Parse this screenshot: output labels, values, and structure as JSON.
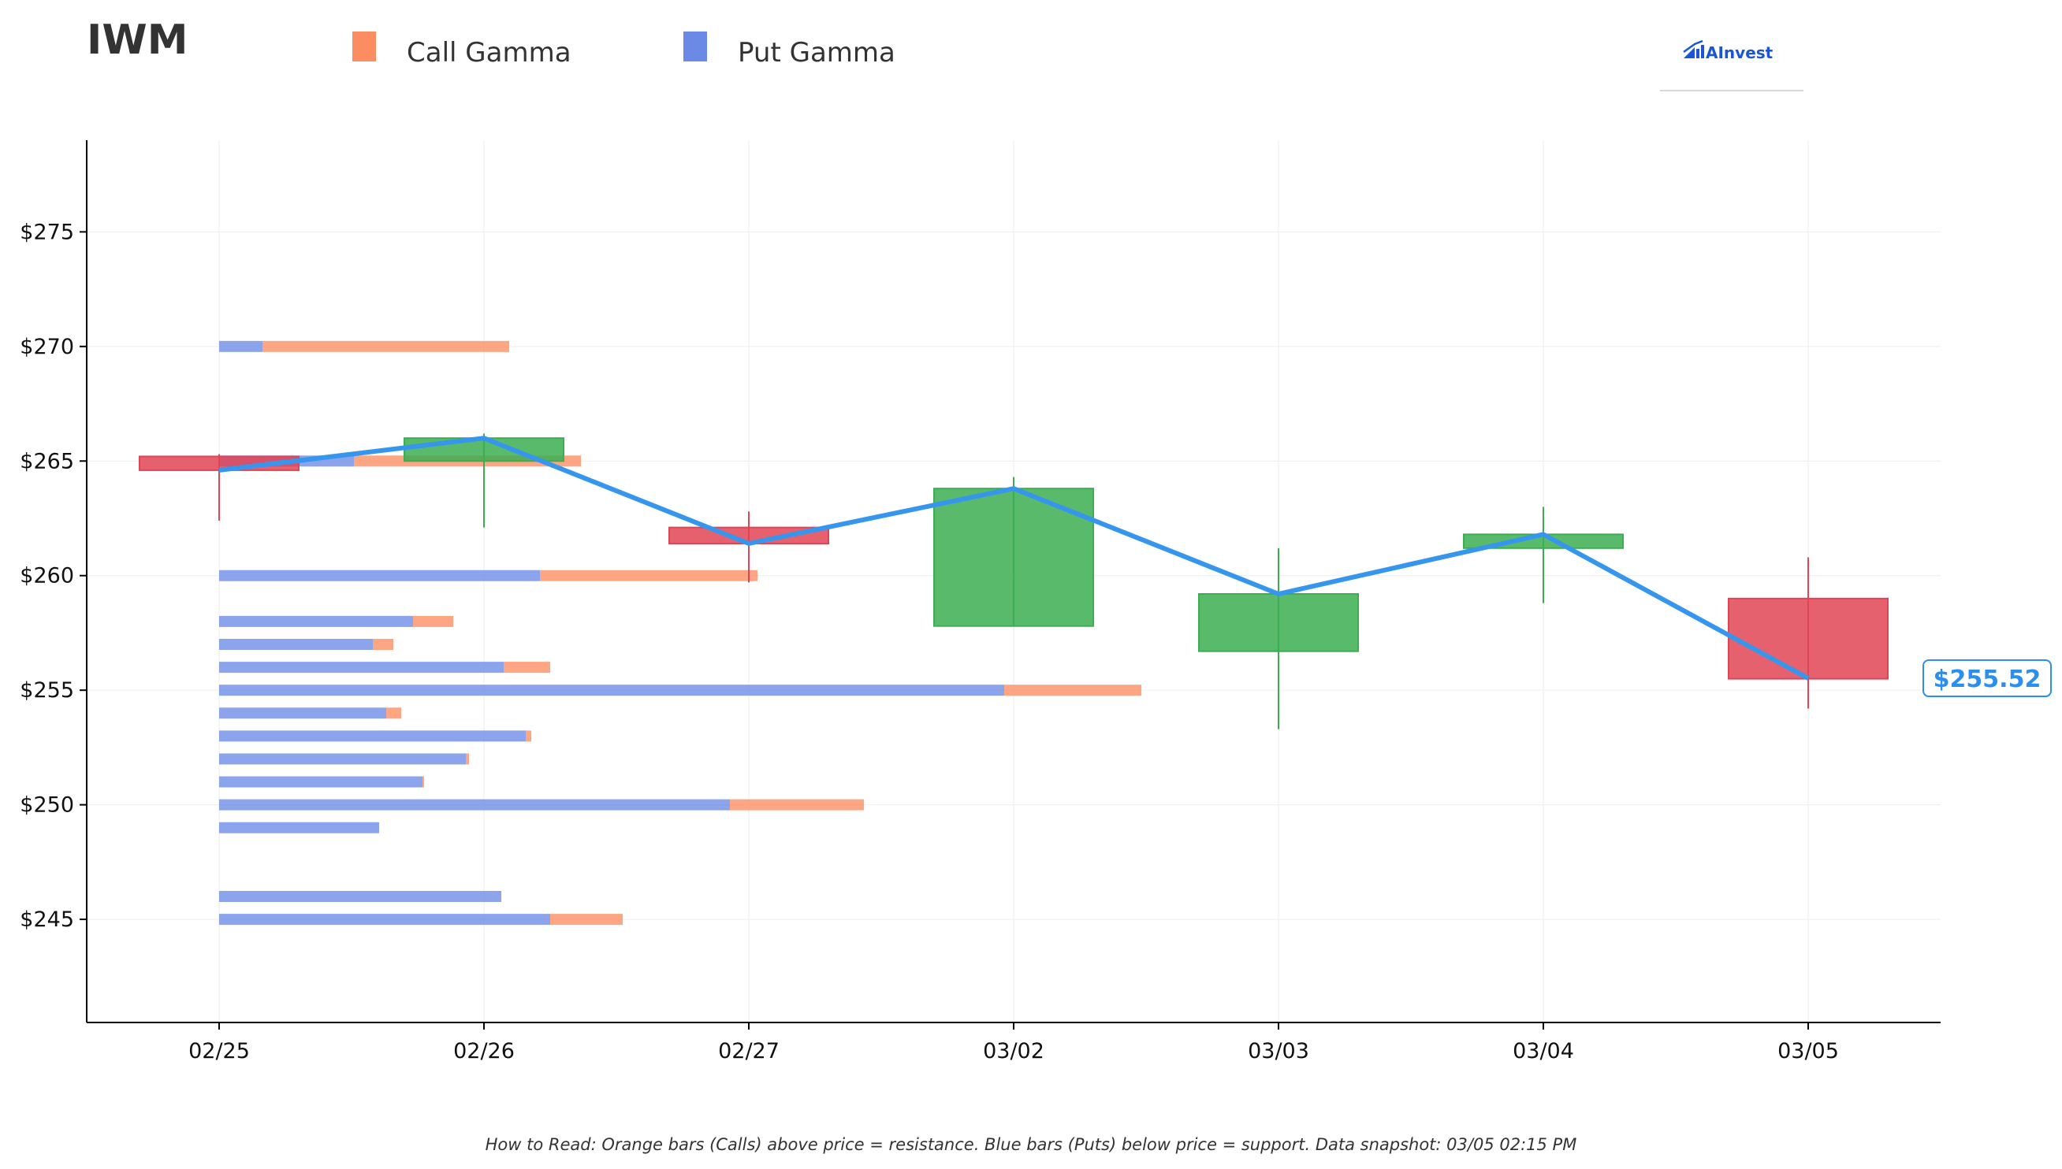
{
  "ticker": "IWM",
  "brand": {
    "name": "AInvest"
  },
  "colors": {
    "call": "#fc8d62",
    "put": "#6b8ae6",
    "up": "#3cae52",
    "down": "#e04555",
    "price_line": "#3696ee",
    "axis": "#000000",
    "grid": "#eeeeee"
  },
  "footer": "How to Read: Orange bars (Calls) above price = resistance. Blue bars (Puts) below price = support. Data snapshot: 03/05 02:15 PM",
  "chart_data": {
    "type": "candlestick-with-gamma-bars",
    "title": "IWM",
    "legend": [
      {
        "label": "Call Gamma",
        "color": "#fc8d62"
      },
      {
        "label": "Put Gamma",
        "color": "#6b8ae6"
      }
    ],
    "legend_position": "top-left",
    "grid": true,
    "ylim": [
      240.5,
      279
    ],
    "yticks": [
      245,
      250,
      255,
      260,
      265,
      270,
      275
    ],
    "ytick_labels": [
      "$245",
      "$250",
      "$255",
      "$260",
      "$265",
      "$270",
      "$275"
    ],
    "categories": [
      "02/25",
      "02/26",
      "02/27",
      "03/02",
      "03/03",
      "03/04",
      "03/05"
    ],
    "candles": [
      {
        "date": "02/25",
        "open": 265.2,
        "high": 265.3,
        "low": 262.4,
        "close": 264.6
      },
      {
        "date": "02/26",
        "open": 265.0,
        "high": 266.2,
        "low": 262.1,
        "close": 266.0
      },
      {
        "date": "02/27",
        "open": 262.1,
        "high": 262.8,
        "low": 259.7,
        "close": 261.4
      },
      {
        "date": "03/02",
        "open": 257.8,
        "high": 264.3,
        "low": 257.8,
        "close": 263.8
      },
      {
        "date": "03/03",
        "open": 256.7,
        "high": 261.2,
        "low": 253.3,
        "close": 259.2
      },
      {
        "date": "03/04",
        "open": 261.2,
        "high": 263.0,
        "low": 258.8,
        "close": 261.8
      },
      {
        "date": "03/05",
        "open": 259.0,
        "high": 260.8,
        "low": 254.2,
        "close": 255.5
      }
    ],
    "price_line": [
      264.6,
      266.0,
      261.4,
      263.8,
      259.2,
      261.8,
      255.52
    ],
    "current_price": 255.52,
    "current_price_label": "$255.52",
    "gamma_scale_max": 100,
    "gamma_bars": [
      {
        "strike": 270,
        "put": 5.5,
        "call": 31.3
      },
      {
        "strike": 265,
        "put": 17.1,
        "call": 28.8
      },
      {
        "strike": 260,
        "put": 40.7,
        "call": 27.6
      },
      {
        "strike": 258,
        "put": 24.6,
        "call": 5.1
      },
      {
        "strike": 257,
        "put": 19.5,
        "call": 2.6
      },
      {
        "strike": 256,
        "put": 36.1,
        "call": 5.9
      },
      {
        "strike": 255,
        "put": 99.6,
        "call": 17.4
      },
      {
        "strike": 254,
        "put": 21.2,
        "call": 1.9
      },
      {
        "strike": 253,
        "put": 38.9,
        "call": 0.7
      },
      {
        "strike": 252,
        "put": 31.3,
        "call": 0.4
      },
      {
        "strike": 251,
        "put": 25.8,
        "call": 0.2
      },
      {
        "strike": 250,
        "put": 64.8,
        "call": 17.0
      },
      {
        "strike": 249,
        "put": 20.3,
        "call": 0
      },
      {
        "strike": 246,
        "put": 35.8,
        "call": 0
      },
      {
        "strike": 245,
        "put": 42.0,
        "call": 9.2
      }
    ]
  }
}
